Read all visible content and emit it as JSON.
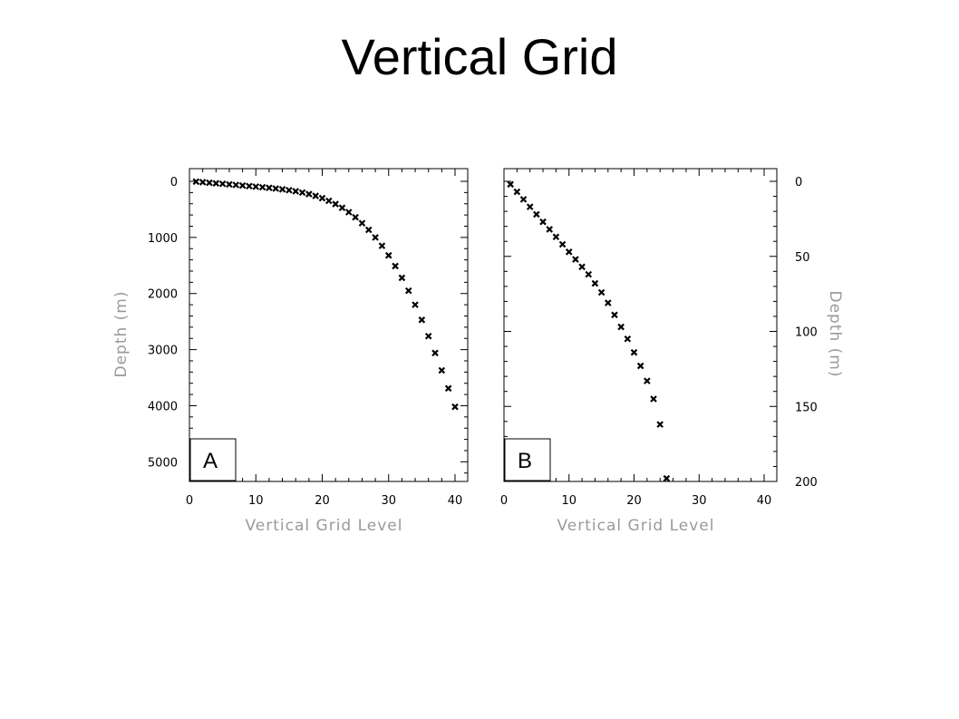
{
  "title": "Vertical Grid",
  "chart_data": [
    {
      "type": "scatter",
      "panel_label": "A",
      "xlabel": "Vertical Grid Level",
      "ylabel": "Depth (m)",
      "xlim": [
        0,
        40
      ],
      "ylim": [
        5350,
        0
      ],
      "y_inverted": true,
      "ylabel_side": "left",
      "xticks": [
        0,
        10,
        20,
        30,
        40
      ],
      "yticks": [
        0,
        1000,
        2000,
        3000,
        4000,
        5000
      ],
      "x_minor_step": 2,
      "y_minor_step": 200,
      "grid": false,
      "marker": "x",
      "x": [
        1,
        2,
        3,
        4,
        5,
        6,
        7,
        8,
        9,
        10,
        11,
        12,
        13,
        14,
        15,
        16,
        17,
        18,
        19,
        20,
        21,
        22,
        23,
        24,
        25,
        26,
        27,
        28,
        29,
        30,
        31,
        32,
        33,
        34,
        35,
        36,
        37,
        38,
        39,
        40
      ],
      "y": [
        5,
        15,
        25,
        35,
        45,
        55,
        65,
        75,
        85,
        95,
        105,
        116,
        128,
        142,
        158,
        177,
        200,
        227,
        260,
        300,
        348,
        405,
        472,
        550,
        640,
        745,
        865,
        1000,
        1150,
        1320,
        1510,
        1720,
        1950,
        2200,
        2470,
        2760,
        3060,
        3370,
        3690,
        4020
      ]
    },
    {
      "type": "scatter",
      "panel_label": "B",
      "xlabel": "Vertical Grid Level",
      "ylabel": "Depth (m)",
      "xlim": [
        0,
        40
      ],
      "ylim": [
        200,
        0
      ],
      "y_inverted": true,
      "ylabel_side": "right",
      "xticks": [
        0,
        10,
        20,
        30,
        40
      ],
      "yticks": [
        0,
        50,
        100,
        150,
        200
      ],
      "x_minor_step": 2,
      "y_minor_step": 10,
      "grid": false,
      "marker": "x",
      "x": [
        1,
        2,
        3,
        4,
        5,
        6,
        7,
        8,
        9,
        10,
        11,
        12,
        13,
        14,
        15,
        16,
        17,
        18,
        19,
        20,
        21,
        22,
        23,
        24,
        25
      ],
      "y": [
        2,
        7,
        12,
        17,
        22,
        27,
        32,
        37,
        42,
        47,
        52,
        57,
        62,
        68,
        74,
        81,
        89,
        97,
        105,
        114,
        123,
        133,
        145,
        162,
        198
      ]
    }
  ]
}
